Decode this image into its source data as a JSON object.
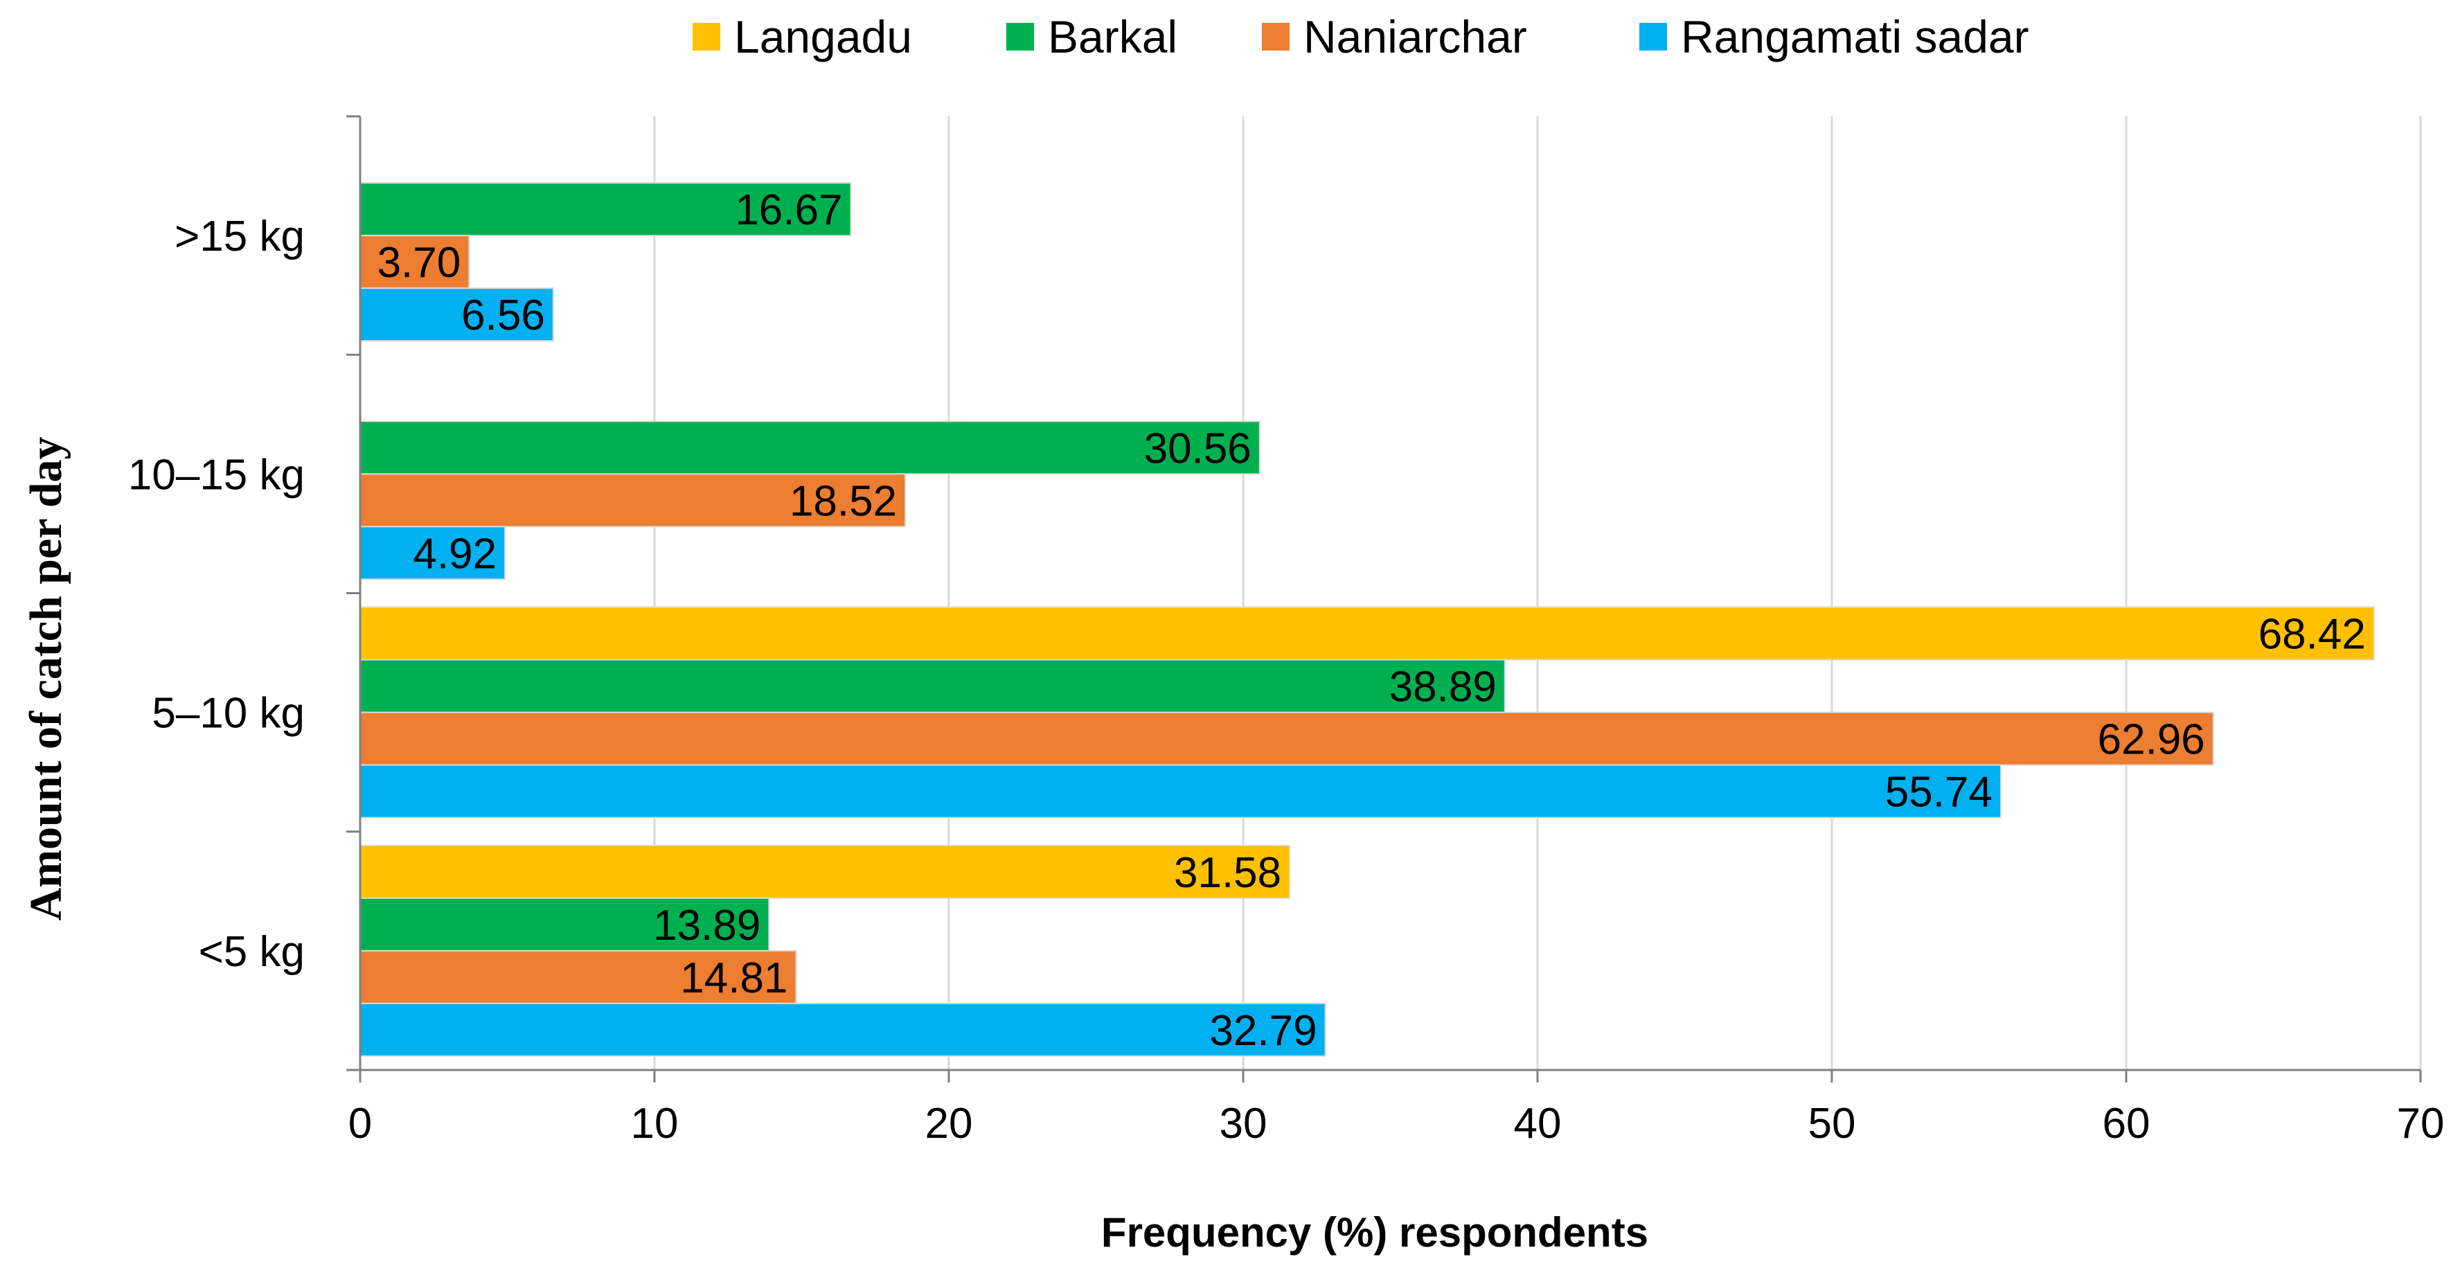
{
  "chart_data": {
    "type": "bar",
    "orientation": "horizontal",
    "title": "",
    "xlabel": "Frequency (%) respondents",
    "ylabel": "Amount of catch per day",
    "xlim": [
      0,
      70
    ],
    "x_ticks": [
      "0",
      "10",
      "20",
      "30",
      "40",
      "50",
      "60",
      "70"
    ],
    "grid": true,
    "legend_position": "top",
    "categories": [
      ">15 kg",
      "10–15 kg",
      "5–10 kg",
      "<5 kg"
    ],
    "series": [
      {
        "name": "Langadu",
        "color": "#FFC000",
        "values": [
          null,
          null,
          68.42,
          31.58
        ],
        "labels": [
          "",
          "",
          "68.42",
          "31.58"
        ]
      },
      {
        "name": "Barkal",
        "color": "#00B050",
        "values": [
          16.67,
          30.56,
          38.89,
          13.89
        ],
        "labels": [
          "16.67",
          "30.56",
          "38.89",
          "13.89"
        ]
      },
      {
        "name": "Naniarchar",
        "color": "#ED7D31",
        "values": [
          3.7,
          18.52,
          62.96,
          14.81
        ],
        "labels": [
          "3.70",
          "18.52",
          "62.96",
          "14.81"
        ]
      },
      {
        "name": "Rangamati sadar",
        "color": "#00B0F0",
        "values": [
          6.56,
          4.92,
          55.74,
          32.79
        ],
        "labels": [
          "6.56",
          "4.92",
          "55.74",
          "32.79"
        ]
      }
    ]
  }
}
